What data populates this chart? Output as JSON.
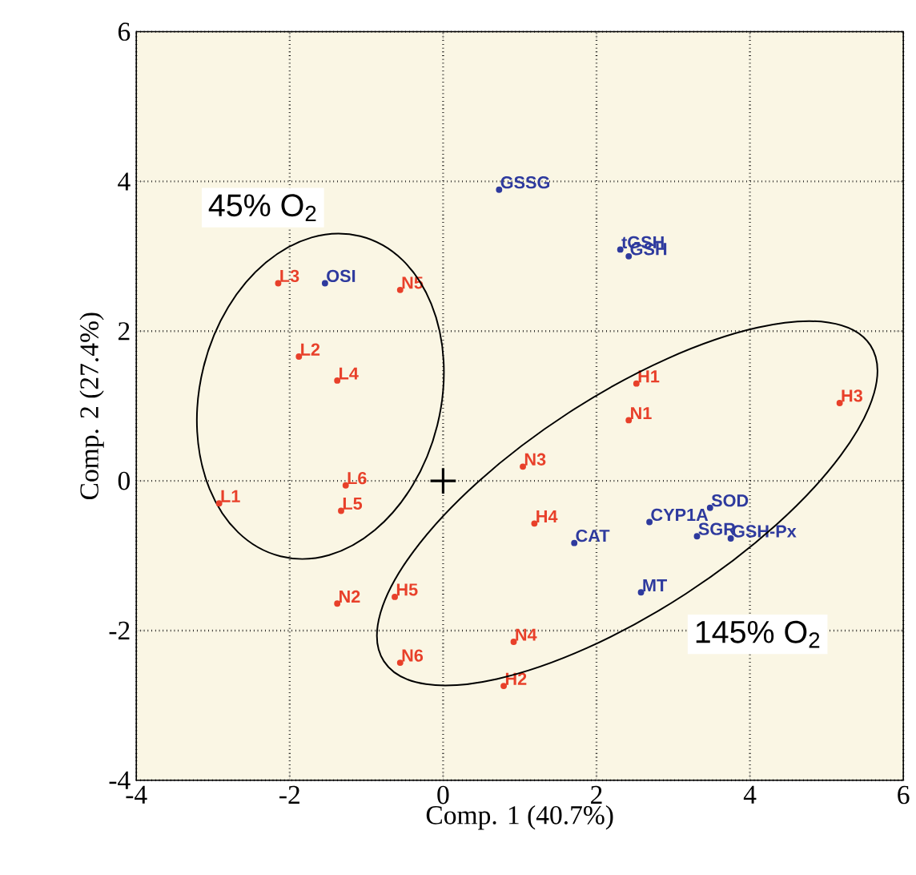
{
  "chart_data": {
    "type": "scatter",
    "xlabel": "Comp. 1 (40.7%)",
    "ylabel": "Comp. 2 (27.4%)",
    "xlim": [
      -4,
      6
    ],
    "ylim": [
      -4,
      6
    ],
    "xticks": [
      -4,
      -2,
      0,
      2,
      4,
      6
    ],
    "yticks": [
      -4,
      -2,
      0,
      2,
      4,
      6
    ],
    "grid": true,
    "marker": "circle",
    "series": [
      {
        "color": "#e8402a",
        "x": [
          -2.92,
          -1.88,
          -2.15,
          -1.38,
          -1.33,
          -1.27,
          2.42,
          -1.38,
          1.04,
          0.92,
          -0.56,
          -0.56,
          2.52,
          0.79,
          5.17,
          1.19,
          -0.63
        ],
        "values": [
          -0.3,
          1.66,
          2.64,
          1.34,
          -0.4,
          -0.06,
          0.81,
          -1.64,
          0.19,
          -2.15,
          2.55,
          -2.43,
          1.3,
          -2.74,
          1.04,
          -0.57,
          -1.55
        ],
        "value_labels": [
          "L1",
          "L2",
          "L3",
          "L4",
          "L5",
          "L6",
          "N1",
          "N2",
          "N3",
          "N4",
          "N5",
          "N6",
          "H1",
          "H2",
          "H3",
          "H4",
          "H5"
        ]
      },
      {
        "color": "#2e3a9e",
        "x": [
          -1.54,
          0.73,
          2.31,
          2.42,
          1.71,
          2.69,
          3.48,
          3.31,
          3.75,
          2.58
        ],
        "values": [
          2.64,
          3.89,
          3.09,
          3.0,
          -0.83,
          -0.55,
          -0.36,
          -0.74,
          -0.77,
          -1.49
        ],
        "value_labels": [
          "OSI",
          "GSSG",
          "tGSH",
          "GSH",
          "CAT",
          "CYP1A",
          "SOD",
          "SGR",
          "GSH-Px",
          "MT"
        ]
      },
      {
        "type": "scatter",
        "marker": "cross",
        "color": "#000000",
        "x": [
          0
        ],
        "values": [
          0
        ]
      }
    ],
    "annotations": [
      "45% O$_{2}$",
      "145% O$_{2}$"
    ]
  }
}
